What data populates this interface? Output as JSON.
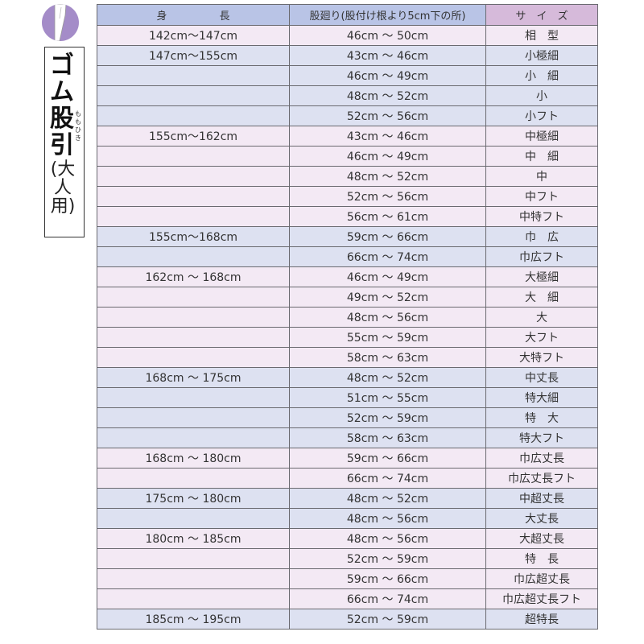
{
  "sidebar": {
    "icon": "pants-icon",
    "title": "ゴム股引",
    "ruby": "ももひき",
    "subtitle": "(大人用)"
  },
  "colors": {
    "pink_row": "#f3e9f4",
    "blue_row": "#dde1f1",
    "header_blue": "#b9c4e6",
    "header_purple": "#d6bada",
    "icon_purple": "#a48cc8"
  },
  "table": {
    "headers": [
      "身　　　　　長",
      "股廻り(股付け根より5cm下の所)",
      "サ　イ　ズ"
    ],
    "rows": [
      {
        "height": "142cm～147cm",
        "girth": "46cm ～ 50cm",
        "size": "相　型",
        "tone": "pink"
      },
      {
        "height": "147cm～155cm",
        "girth": "43cm ～ 46cm",
        "size": "小極細",
        "tone": "blue"
      },
      {
        "height": "",
        "girth": "46cm ～ 49cm",
        "size": "小　細",
        "tone": "blue"
      },
      {
        "height": "",
        "girth": "48cm ～ 52cm",
        "size": "小",
        "tone": "blue"
      },
      {
        "height": "",
        "girth": "52cm ～ 56cm",
        "size": "小フト",
        "tone": "blue"
      },
      {
        "height": "155cm～162cm",
        "girth": "43cm ～ 46cm",
        "size": "中極細",
        "tone": "pink"
      },
      {
        "height": "",
        "girth": "46cm ～ 49cm",
        "size": "中　細",
        "tone": "pink"
      },
      {
        "height": "",
        "girth": "48cm ～ 52cm",
        "size": "中",
        "tone": "pink"
      },
      {
        "height": "",
        "girth": "52cm ～ 56cm",
        "size": "中フト",
        "tone": "pink"
      },
      {
        "height": "",
        "girth": "56cm ～ 61cm",
        "size": "中特フト",
        "tone": "pink"
      },
      {
        "height": "155cm～168cm",
        "girth": "59cm ～ 66cm",
        "size": "巾　広",
        "tone": "blue"
      },
      {
        "height": "",
        "girth": "66cm ～ 74cm",
        "size": "巾広フト",
        "tone": "blue"
      },
      {
        "height": "162cm ～ 168cm",
        "girth": "46cm ～ 49cm",
        "size": "大極細",
        "tone": "pink"
      },
      {
        "height": "",
        "girth": "49cm ～ 52cm",
        "size": "大　細",
        "tone": "pink"
      },
      {
        "height": "",
        "girth": "48cm ～ 56cm",
        "size": "大",
        "tone": "pink"
      },
      {
        "height": "",
        "girth": "55cm ～ 59cm",
        "size": "大フト",
        "tone": "pink"
      },
      {
        "height": "",
        "girth": "58cm ～ 63cm",
        "size": "大特フト",
        "tone": "pink"
      },
      {
        "height": "168cm ～ 175cm",
        "girth": "48cm ～ 52cm",
        "size": "中丈長",
        "tone": "blue"
      },
      {
        "height": "",
        "girth": "51cm ～ 55cm",
        "size": "特大細",
        "tone": "blue"
      },
      {
        "height": "",
        "girth": "52cm ～ 59cm",
        "size": "特　大",
        "tone": "blue"
      },
      {
        "height": "",
        "girth": "58cm ～ 63cm",
        "size": "特大フト",
        "tone": "blue"
      },
      {
        "height": "168cm ～ 180cm",
        "girth": "59cm ～ 66cm",
        "size": "巾広丈長",
        "tone": "pink"
      },
      {
        "height": "",
        "girth": "66cm ～ 74cm",
        "size": "巾広丈長フト",
        "tone": "pink"
      },
      {
        "height": "175cm ～ 180cm",
        "girth": "48cm ～ 52cm",
        "size": "中超丈長",
        "tone": "blue"
      },
      {
        "height": "",
        "girth": "48cm ～ 56cm",
        "size": "大丈長",
        "tone": "blue"
      },
      {
        "height": "180cm ～ 185cm",
        "girth": "48cm ～ 56cm",
        "size": "大超丈長",
        "tone": "pink"
      },
      {
        "height": "",
        "girth": "52cm ～ 59cm",
        "size": "特　長",
        "tone": "pink"
      },
      {
        "height": "",
        "girth": "59cm ～ 66cm",
        "size": "巾広超丈長",
        "tone": "pink"
      },
      {
        "height": "",
        "girth": "66cm ～ 74cm",
        "size": "巾広超丈長フト",
        "tone": "pink"
      },
      {
        "height": "185cm ～ 195cm",
        "girth": "52cm ～ 59cm",
        "size": "超特長",
        "tone": "blue"
      }
    ]
  }
}
